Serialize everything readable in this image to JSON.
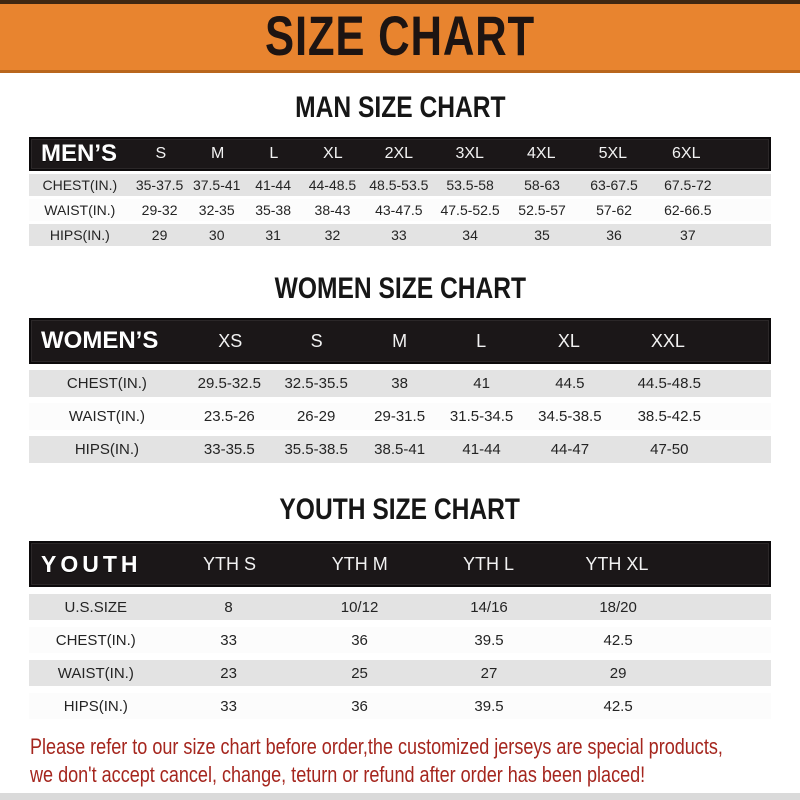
{
  "banner": {
    "title": "SIZE CHART",
    "bg_color": "#E8842F",
    "text_color": "#1D1412"
  },
  "sections": [
    {
      "heading": "MAN SIZE CHART",
      "group_label": "MEN’S",
      "columns": [
        "S",
        "M",
        "L",
        "XL",
        "2XL",
        "3XL",
        "4XL",
        "5XL",
        "6XL"
      ],
      "rows": [
        {
          "label": "CHEST(IN.)",
          "values": [
            "35-37.5",
            "37.5-41",
            "41-44",
            "44-48.5",
            "48.5-53.5",
            "53.5-58",
            "58-63",
            "63-67.5",
            "67.5-72"
          ]
        },
        {
          "label": "WAIST(IN.)",
          "values": [
            "29-32",
            "32-35",
            "35-38",
            "38-43",
            "43-47.5",
            "47.5-52.5",
            "52.5-57",
            "57-62",
            "62-66.5"
          ]
        },
        {
          "label": "HIPS(IN.)",
          "values": [
            "29",
            "30",
            "31",
            "32",
            "33",
            "34",
            "35",
            "36",
            "37"
          ]
        }
      ]
    },
    {
      "heading": "WOMEN SIZE CHART",
      "group_label": "WOMEN’S",
      "columns": [
        "XS",
        "S",
        "M",
        "L",
        "XL",
        "XXL"
      ],
      "rows": [
        {
          "label": "CHEST(IN.)",
          "values": [
            "29.5-32.5",
            "32.5-35.5",
            "38",
            "41",
            "44.5",
            "44.5-48.5"
          ]
        },
        {
          "label": "WAIST(IN.)",
          "values": [
            "23.5-26",
            "26-29",
            "29-31.5",
            "31.5-34.5",
            "34.5-38.5",
            "38.5-42.5"
          ]
        },
        {
          "label": "HIPS(IN.)",
          "values": [
            "33-35.5",
            "35.5-38.5",
            "38.5-41",
            "41-44",
            "44-47",
            "47-50"
          ]
        }
      ]
    },
    {
      "heading": "YOUTH SIZE CHART",
      "group_label": "YOUTH",
      "columns": [
        "YTH S",
        "YTH M",
        "YTH L",
        "YTH XL"
      ],
      "rows": [
        {
          "label": "U.S.SIZE",
          "values": [
            "8",
            "10/12",
            "14/16",
            "18/20"
          ]
        },
        {
          "label": "CHEST(IN.)",
          "values": [
            "33",
            "36",
            "39.5",
            "42.5"
          ]
        },
        {
          "label": "WAIST(IN.)",
          "values": [
            "23",
            "25",
            "27",
            "29"
          ]
        },
        {
          "label": "HIPS(IN.)",
          "values": [
            "33",
            "36",
            "39.5",
            "42.5"
          ]
        }
      ]
    }
  ],
  "footer": {
    "line1": "Please refer to our size chart before order,the customized jerseys are special products,",
    "line2": "we don't accept cancel, change, teturn or refund after order has been placed!",
    "text_color": "#A5261E"
  }
}
